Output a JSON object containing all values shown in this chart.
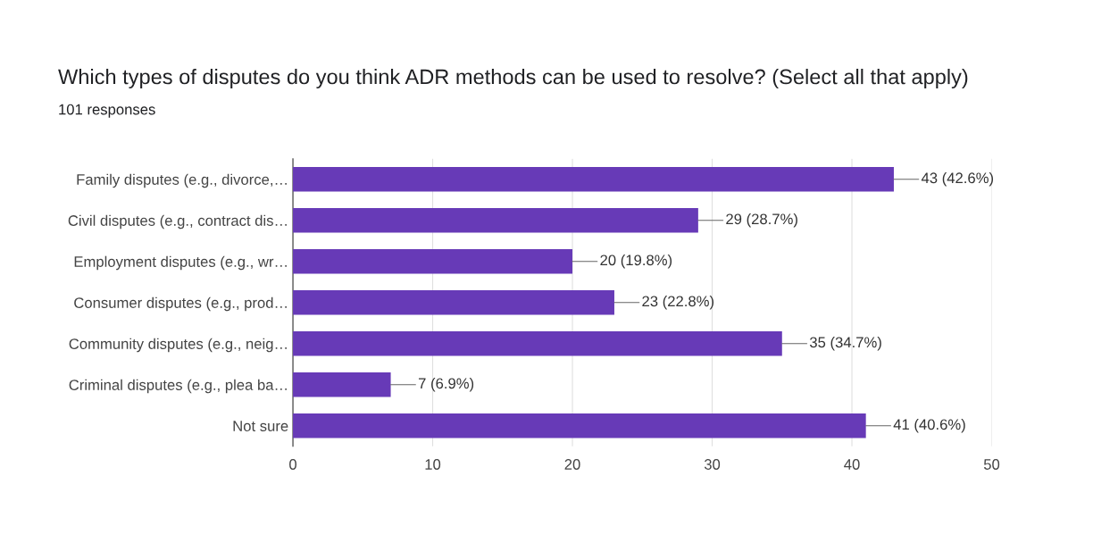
{
  "chart_data": {
    "type": "bar",
    "orientation": "horizontal",
    "title": "Which types of disputes do you think ADR methods can be used to resolve? (Select all that apply)",
    "subtitle": "101 responses",
    "categories": [
      "Family disputes (e.g., divorce,…",
      "Civil disputes (e.g., contract dis…",
      "Employment disputes (e.g., wr…",
      "Consumer disputes (e.g., prod…",
      "Community disputes (e.g., neig…",
      "Criminal disputes (e.g., plea ba…",
      "Not sure"
    ],
    "values": [
      43,
      29,
      20,
      23,
      35,
      7,
      41
    ],
    "value_labels": [
      "43 (42.6%)",
      "29 (28.7%)",
      "20 (19.8%)",
      "23 (22.8%)",
      "35 (34.7%)",
      "7 (6.9%)",
      "41 (40.6%)"
    ],
    "color": "#673ab7",
    "xlim": [
      0,
      50
    ],
    "xticks": [
      0,
      10,
      20,
      30,
      40,
      50
    ],
    "grid": "x",
    "legend": false
  }
}
